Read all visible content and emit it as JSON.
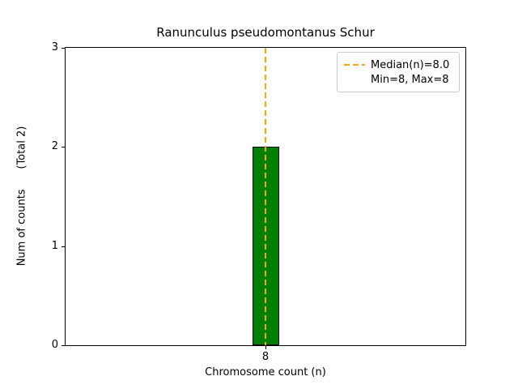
{
  "chart_data": {
    "type": "bar",
    "title": "Ranunculus pseudomontanus Schur",
    "xlabel": "Chromosome count (n)",
    "ylabel": "Num of counts      (Total 2)",
    "categories": [
      "8"
    ],
    "values": [
      2
    ],
    "total_counts": 2,
    "median": 8.0,
    "min": 8,
    "max": 8,
    "ylim": [
      0,
      3
    ],
    "yticks": [
      0,
      1,
      2,
      3
    ],
    "grid": false,
    "legend_position": "upper right",
    "bar_color": "#008000",
    "bar_edge_color": "#000000",
    "median_line_color": "#ffa500",
    "bar_width_frac": 0.067,
    "legend": [
      {
        "label": "Median(n)=8.0",
        "sample": "dashed-orange-line"
      },
      {
        "label": "Min=8, Max=8",
        "sample": "none"
      }
    ]
  }
}
